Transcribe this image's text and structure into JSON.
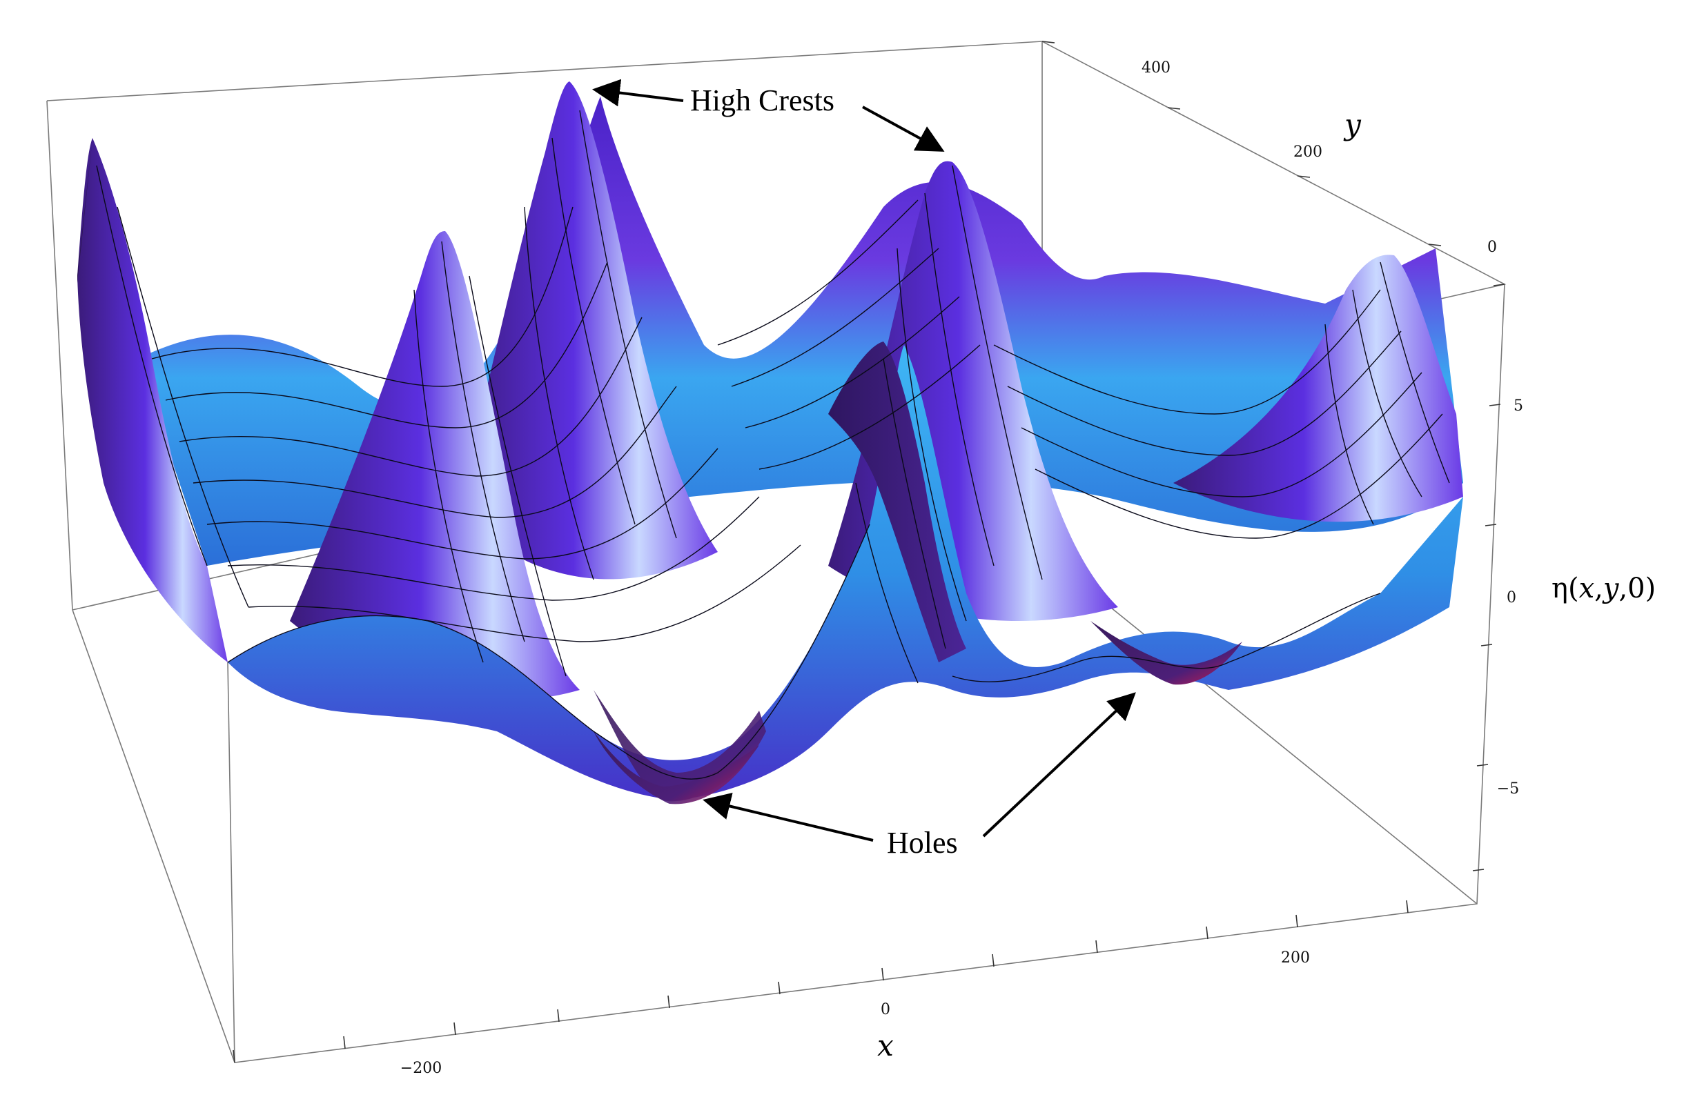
{
  "figure": {
    "annotations": {
      "crests": "High Crests",
      "holes": "Holes"
    },
    "axes": {
      "x": {
        "label": "x",
        "ticks": [
          "−200",
          "0",
          "200"
        ]
      },
      "y": {
        "label": "y",
        "ticks": [
          "0",
          "200",
          "400"
        ]
      },
      "z": {
        "label_prefix": "η(",
        "label_x": "x",
        "label_y": "y",
        "label_suffix": ",0)",
        "ticks": [
          "−5",
          "0",
          "5"
        ]
      }
    },
    "colors": {
      "surface_dark": "#3a1f6e",
      "surface_mid": "#5a2fd6",
      "surface_light": "#38b6f5",
      "highlight": "#d8e8ff",
      "hole_red": "#c81a4a"
    }
  }
}
